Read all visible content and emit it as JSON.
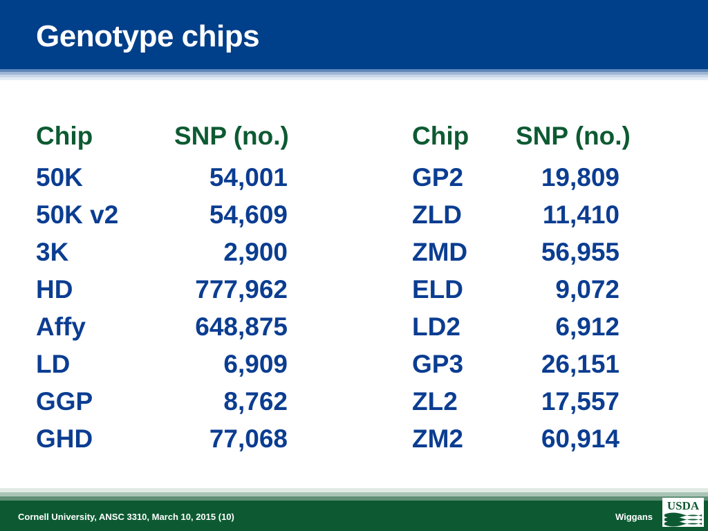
{
  "slide": {
    "title": "Genotype chips"
  },
  "table_left": {
    "header": {
      "chip": "Chip",
      "snp": "SNP (no.)"
    },
    "rows": [
      {
        "chip": "50K",
        "snp": "54,001"
      },
      {
        "chip": "50K v2",
        "snp": "54,609"
      },
      {
        "chip": "3K",
        "snp": "2,900"
      },
      {
        "chip": "HD",
        "snp": "777,962"
      },
      {
        "chip": "Affy",
        "snp": "648,875"
      },
      {
        "chip": "LD",
        "snp": "6,909"
      },
      {
        "chip": "GGP",
        "snp": "8,762"
      },
      {
        "chip": "GHD",
        "snp": "77,068"
      }
    ]
  },
  "table_right": {
    "header": {
      "chip": "Chip",
      "snp": "SNP (no.)"
    },
    "rows": [
      {
        "chip": "GP2",
        "snp": "19,809"
      },
      {
        "chip": "ZLD",
        "snp": "11,410"
      },
      {
        "chip": "ZMD",
        "snp": "56,955"
      },
      {
        "chip": "ELD",
        "snp": "9,072"
      },
      {
        "chip": "LD2",
        "snp": "6,912"
      },
      {
        "chip": "GP3",
        "snp": "26,151"
      },
      {
        "chip": "ZL2",
        "snp": "17,557"
      },
      {
        "chip": "ZM2",
        "snp": "60,914"
      }
    ]
  },
  "footer": {
    "left": "Cornell University, ANSC 3310, March 10, 2015 (10)",
    "right": "Wiggans",
    "logo_text": "USDA"
  },
  "colors": {
    "header_blue": "#003f8a",
    "footer_green": "#0d5a32",
    "text_blue": "#0b3d91",
    "heading_green": "#0d5a32"
  }
}
